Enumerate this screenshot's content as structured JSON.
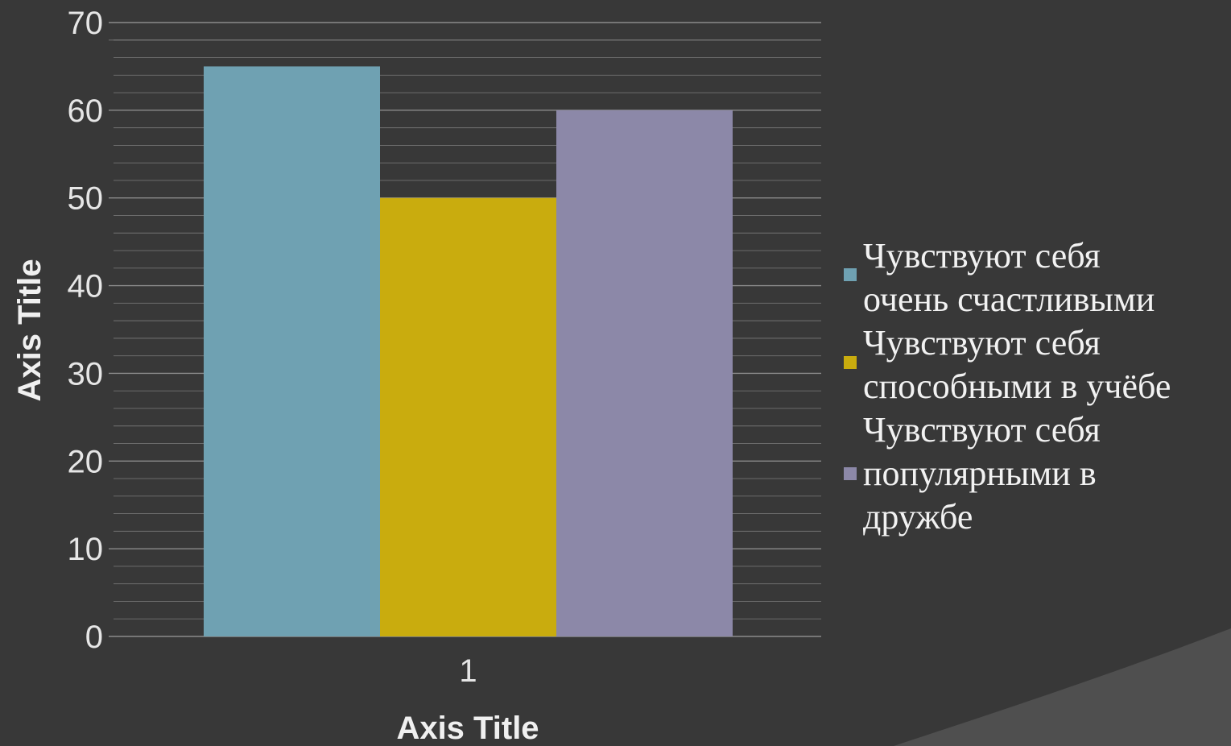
{
  "chart_data": {
    "type": "bar",
    "categories": [
      "1"
    ],
    "series": [
      {
        "name": "Чувствуют себя очень счастливыми",
        "values": [
          65
        ],
        "color": "#6fa1b2"
      },
      {
        "name": "Чувствуют себя способными в учёбе",
        "values": [
          50
        ],
        "color": "#c9ac0e"
      },
      {
        "name": "Чувствуют себя популярными в дружбе",
        "values": [
          60
        ],
        "color": "#8c88a8"
      }
    ],
    "xlabel": "Axis Title",
    "ylabel": "Axis Title",
    "ylim": [
      0,
      70
    ],
    "yticks": [
      0,
      10,
      20,
      30,
      40,
      50,
      60,
      70
    ],
    "grid": "major and minor horizontal gridlines",
    "legend_position": "right"
  },
  "legend": {
    "lines": [
      [
        "Чувствуют себя",
        "очень счастливыми"
      ],
      [
        "Чувствуют себя",
        "способными в учёбе"
      ],
      [
        "Чувствуют себя",
        "популярными в",
        "дружбе"
      ]
    ]
  },
  "colors": {
    "background": "#383838",
    "corner_swoosh": "#4f4f4f",
    "gridline": "#9a9a9a",
    "text": "#e6e6e6"
  }
}
